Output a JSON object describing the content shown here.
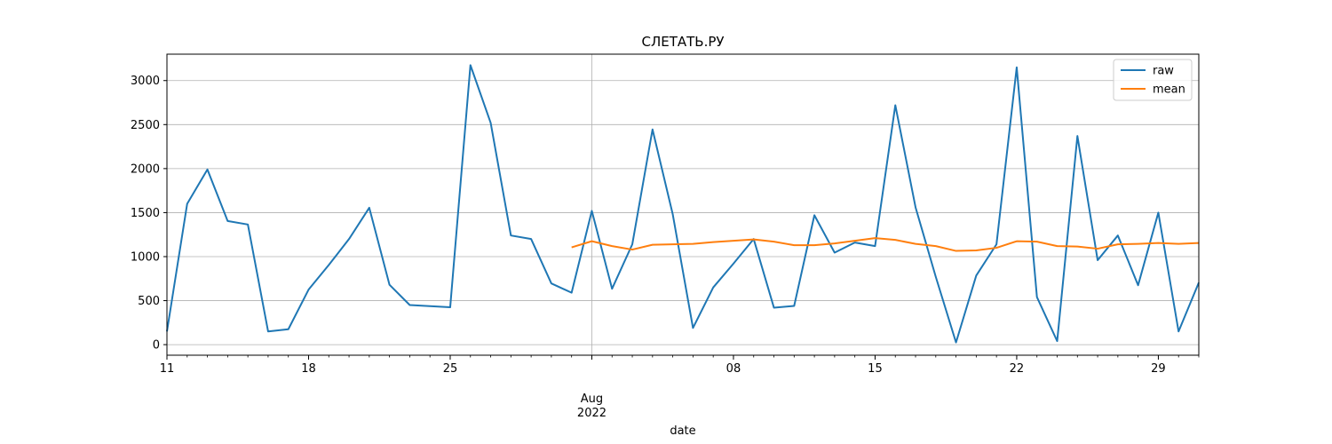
{
  "chart_data": {
    "type": "line",
    "title": "СЛЕТАТЬ.РУ",
    "xlabel": "date",
    "ylabel": "",
    "x_start": "2022-07-11",
    "x_end": "2022-08-31",
    "ylim": [
      -120,
      3300
    ],
    "grid": true,
    "legend_position": "top-right",
    "x_ticks": [
      {
        "date": "2022-07-11",
        "label": "11"
      },
      {
        "date": "2022-07-18",
        "label": "18"
      },
      {
        "date": "2022-07-25",
        "label": "25"
      },
      {
        "date": "2022-08-01",
        "label": "Aug\n2022"
      },
      {
        "date": "2022-08-08",
        "label": "08"
      },
      {
        "date": "2022-08-15",
        "label": "15"
      },
      {
        "date": "2022-08-22",
        "label": "22"
      },
      {
        "date": "2022-08-29",
        "label": "29"
      }
    ],
    "y_ticks": [
      0,
      500,
      1000,
      1500,
      2000,
      2500,
      3000
    ],
    "series": [
      {
        "name": "raw",
        "color": "#1f77b4",
        "points": [
          [
            "2022-07-11",
            150
          ],
          [
            "2022-07-12",
            1600
          ],
          [
            "2022-07-13",
            1990
          ],
          [
            "2022-07-14",
            1405
          ],
          [
            "2022-07-15",
            1365
          ],
          [
            "2022-07-16",
            150
          ],
          [
            "2022-07-17",
            175
          ],
          [
            "2022-07-18",
            625
          ],
          [
            "2022-07-19",
            905
          ],
          [
            "2022-07-20",
            1200
          ],
          [
            "2022-07-21",
            1555
          ],
          [
            "2022-07-22",
            680
          ],
          [
            "2022-07-23",
            450
          ],
          [
            "2022-07-25",
            425
          ],
          [
            "2022-07-26",
            3175
          ],
          [
            "2022-07-27",
            2520
          ],
          [
            "2022-07-28",
            1240
          ],
          [
            "2022-07-29",
            1200
          ],
          [
            "2022-07-30",
            695
          ],
          [
            "2022-07-31",
            590
          ],
          [
            "2022-08-01",
            1520
          ],
          [
            "2022-08-02",
            635
          ],
          [
            "2022-08-03",
            1140
          ],
          [
            "2022-08-04",
            2445
          ],
          [
            "2022-08-05",
            1480
          ],
          [
            "2022-08-06",
            190
          ],
          [
            "2022-08-07",
            650
          ],
          [
            "2022-08-08",
            920
          ],
          [
            "2022-08-09",
            1200
          ],
          [
            "2022-08-10",
            420
          ],
          [
            "2022-08-11",
            440
          ],
          [
            "2022-08-12",
            1470
          ],
          [
            "2022-08-13",
            1045
          ],
          [
            "2022-08-14",
            1160
          ],
          [
            "2022-08-15",
            1120
          ],
          [
            "2022-08-16",
            2720
          ],
          [
            "2022-08-17",
            1560
          ],
          [
            "2022-08-18",
            770
          ],
          [
            "2022-08-19",
            25
          ],
          [
            "2022-08-20",
            785
          ],
          [
            "2022-08-21",
            1140
          ],
          [
            "2022-08-22",
            3150
          ],
          [
            "2022-08-23",
            540
          ],
          [
            "2022-08-24",
            40
          ],
          [
            "2022-08-25",
            2370
          ],
          [
            "2022-08-26",
            960
          ],
          [
            "2022-08-27",
            1240
          ],
          [
            "2022-08-28",
            675
          ],
          [
            "2022-08-29",
            1500
          ],
          [
            "2022-08-30",
            150
          ],
          [
            "2022-08-31",
            705
          ]
        ]
      },
      {
        "name": "mean",
        "color": "#ff7f0e",
        "points": [
          [
            "2022-07-31",
            1105
          ],
          [
            "2022-08-01",
            1175
          ],
          [
            "2022-08-02",
            1120
          ],
          [
            "2022-08-03",
            1080
          ],
          [
            "2022-08-04",
            1135
          ],
          [
            "2022-08-05",
            1140
          ],
          [
            "2022-08-06",
            1145
          ],
          [
            "2022-08-07",
            1165
          ],
          [
            "2022-08-08",
            1180
          ],
          [
            "2022-08-09",
            1195
          ],
          [
            "2022-08-10",
            1170
          ],
          [
            "2022-08-11",
            1130
          ],
          [
            "2022-08-12",
            1130
          ],
          [
            "2022-08-13",
            1150
          ],
          [
            "2022-08-14",
            1180
          ],
          [
            "2022-08-15",
            1210
          ],
          [
            "2022-08-16",
            1190
          ],
          [
            "2022-08-17",
            1145
          ],
          [
            "2022-08-18",
            1120
          ],
          [
            "2022-08-19",
            1065
          ],
          [
            "2022-08-20",
            1070
          ],
          [
            "2022-08-21",
            1100
          ],
          [
            "2022-08-22",
            1175
          ],
          [
            "2022-08-23",
            1170
          ],
          [
            "2022-08-24",
            1120
          ],
          [
            "2022-08-25",
            1115
          ],
          [
            "2022-08-26",
            1090
          ],
          [
            "2022-08-27",
            1140
          ],
          [
            "2022-08-28",
            1145
          ],
          [
            "2022-08-29",
            1155
          ],
          [
            "2022-08-30",
            1145
          ],
          [
            "2022-08-31",
            1155
          ]
        ]
      }
    ]
  }
}
